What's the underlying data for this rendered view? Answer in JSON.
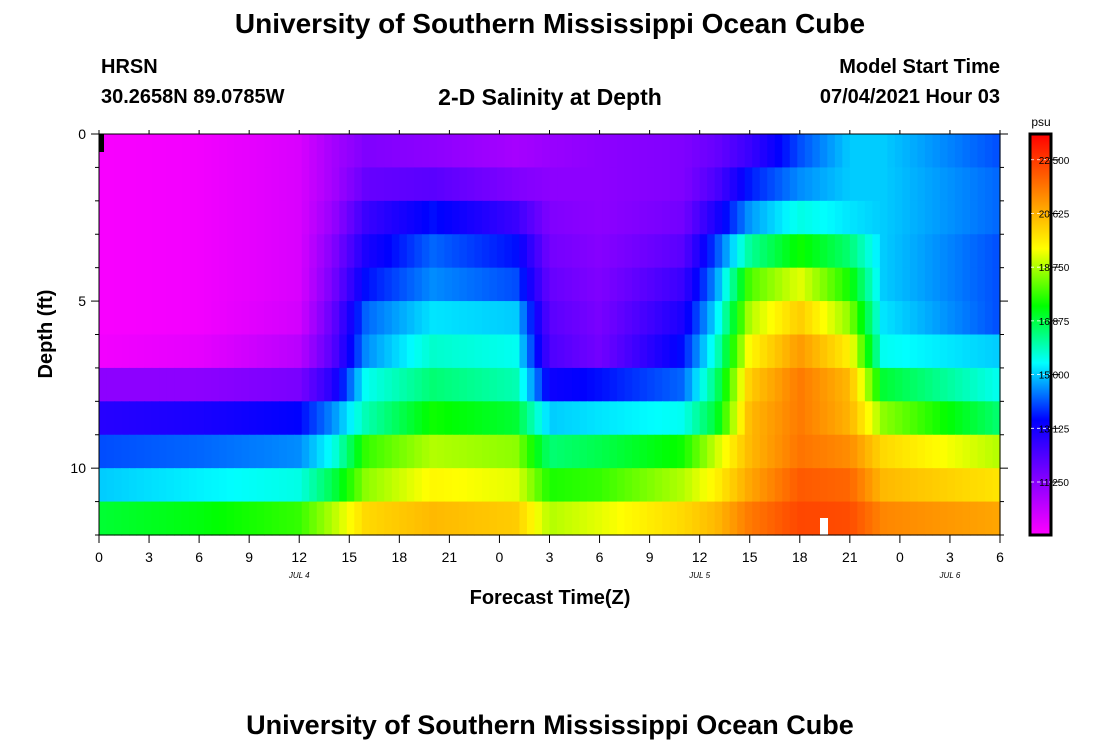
{
  "header": {
    "title": "University of Southern Mississippi Ocean Cube",
    "station": "HRSN",
    "coords": "30.2658N  89.0785W",
    "plot_title": "2-D Salinity at Depth",
    "model_label": "Model Start Time",
    "model_time": "07/04/2021 Hour 03"
  },
  "footer": {
    "title": "University of Southern Mississippi Ocean Cube"
  },
  "chart_data": {
    "type": "heatmap",
    "title": "2-D Salinity at Depth",
    "xlabel": "Forecast Time(Z)",
    "ylabel": "Depth (ft)",
    "x_hours_range": [
      0,
      54
    ],
    "x_tick_labels": [
      "0",
      "3",
      "6",
      "9",
      "12",
      "15",
      "18",
      "21",
      "0",
      "3",
      "6",
      "9",
      "12",
      "15",
      "18",
      "21",
      "0",
      "3",
      "6"
    ],
    "date_labels": [
      {
        "label": "JUL 4",
        "hour": 12
      },
      {
        "label": "JUL 5",
        "hour": 36
      },
      {
        "label": "JUL 6",
        "hour": 51
      }
    ],
    "y_ticks": [
      0,
      5,
      10
    ],
    "y_range_ft": [
      0,
      12
    ],
    "depth_layers": 12,
    "colorbar": {
      "unit": "psu",
      "range": [
        9.4,
        23.4
      ],
      "tick_labels": [
        "22.500",
        "20.625",
        "18.750",
        "16.875",
        "15.000",
        "13.125",
        "11.250"
      ],
      "tick_values": [
        22.5,
        20.625,
        18.75,
        16.875,
        15.0,
        13.125,
        11.25
      ],
      "colors": [
        "#ff00ff",
        "#8000ff",
        "#0000ff",
        "#00ffff",
        "#00ff00",
        "#ffff00",
        "#ff8000",
        "#ff0000"
      ]
    },
    "salinity_keyframes": {
      "hours": [
        0,
        6,
        12,
        14,
        16,
        20,
        25,
        27,
        30,
        35,
        37,
        39,
        42,
        45,
        47,
        54
      ],
      "layers": [
        [
          9.5,
          9.6,
          10.0,
          10.8,
          11.4,
          11.2,
          10.8,
          11.0,
          11.2,
          11.4,
          11.8,
          12.5,
          14.0,
          15.0,
          15.0,
          14.0
        ],
        [
          9.5,
          9.6,
          10.0,
          10.8,
          11.8,
          12.0,
          11.4,
          11.2,
          11.2,
          11.4,
          12.2,
          13.6,
          14.5,
          15.0,
          15.0,
          14.2
        ],
        [
          9.5,
          9.6,
          10.0,
          11.0,
          12.5,
          13.5,
          12.5,
          11.4,
          11.2,
          11.6,
          13.0,
          14.6,
          15.6,
          15.2,
          15.0,
          14.2
        ],
        [
          9.5,
          9.6,
          10.0,
          11.3,
          13.0,
          14.2,
          13.5,
          11.6,
          11.3,
          12.0,
          14.0,
          16.2,
          17.5,
          16.5,
          15.0,
          14.0
        ],
        [
          9.5,
          9.6,
          10.0,
          11.5,
          13.5,
          14.5,
          14.0,
          11.8,
          11.4,
          12.5,
          14.6,
          18.0,
          19.2,
          17.5,
          15.0,
          14.0
        ],
        [
          9.5,
          9.6,
          10.1,
          11.8,
          14.2,
          15.2,
          15.0,
          12.0,
          11.5,
          13.0,
          15.2,
          18.8,
          20.2,
          18.5,
          15.2,
          14.0
        ],
        [
          9.6,
          9.8,
          10.5,
          12.0,
          14.5,
          15.8,
          15.5,
          12.2,
          11.6,
          13.5,
          15.8,
          19.5,
          21.0,
          19.6,
          15.5,
          15.0
        ],
        [
          11.2,
          11.2,
          11.5,
          12.8,
          15.5,
          16.5,
          16.0,
          13.2,
          13.5,
          14.2,
          16.5,
          20.2,
          21.5,
          20.5,
          17.0,
          15.5
        ],
        [
          12.8,
          13.0,
          13.4,
          14.5,
          16.0,
          17.5,
          17.0,
          15.0,
          15.2,
          15.5,
          17.0,
          20.5,
          21.5,
          20.6,
          18.5,
          16.5
        ],
        [
          14.0,
          14.2,
          14.5,
          15.5,
          17.8,
          18.8,
          18.5,
          16.5,
          16.8,
          17.5,
          19.0,
          20.5,
          21.6,
          21.2,
          20.0,
          18.8
        ],
        [
          15.0,
          15.3,
          15.6,
          16.8,
          18.5,
          19.5,
          19.2,
          17.6,
          17.8,
          18.8,
          19.6,
          20.8,
          22.0,
          21.8,
          20.5,
          19.8
        ],
        [
          17.0,
          17.3,
          17.8,
          18.8,
          20.0,
          20.5,
          20.2,
          18.8,
          19.2,
          20.0,
          20.5,
          21.5,
          22.3,
          22.2,
          21.3,
          20.8
        ]
      ]
    }
  }
}
